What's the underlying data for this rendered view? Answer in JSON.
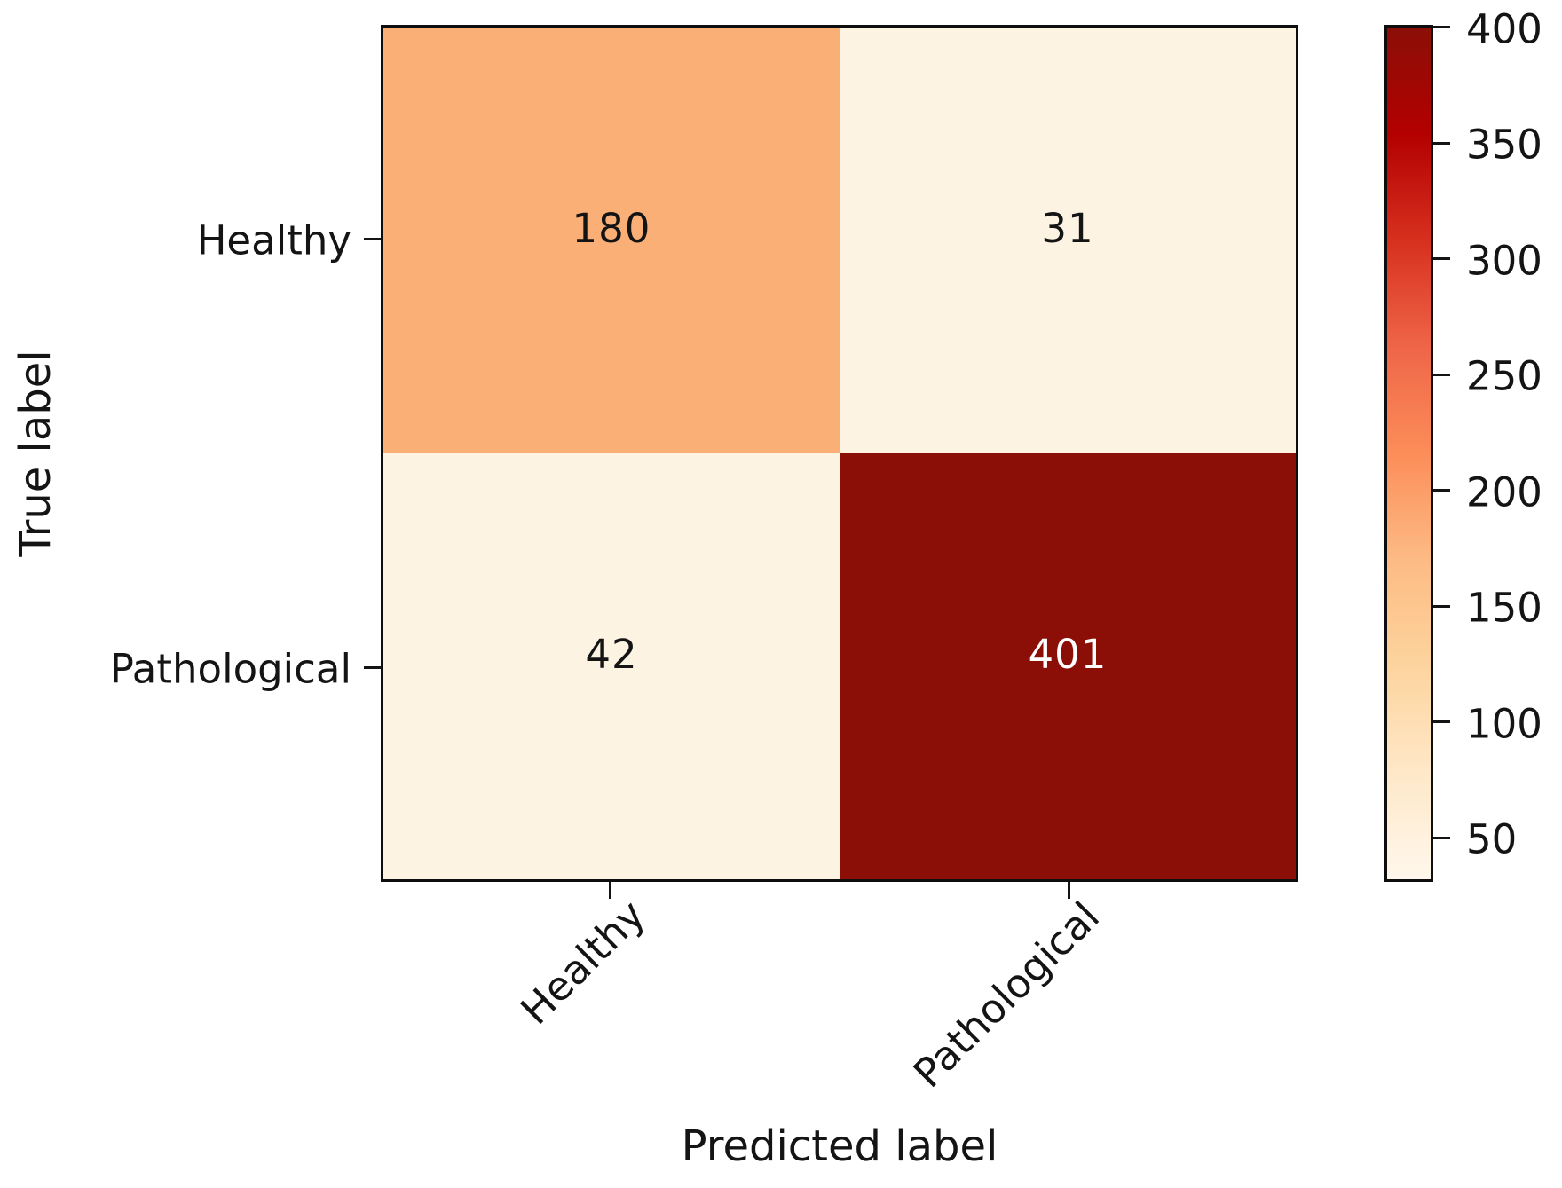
{
  "chart_data": {
    "type": "heatmap",
    "subtype": "confusion-matrix",
    "xlabel": "Predicted label",
    "ylabel": "True label",
    "x_categories": [
      "Healthy",
      "Pathological"
    ],
    "y_categories": [
      "Healthy",
      "Pathological"
    ],
    "matrix": [
      [
        180,
        31
      ],
      [
        42,
        401
      ]
    ],
    "vmin": 31,
    "vmax": 401,
    "colorbar_ticks": [
      400,
      350,
      300,
      250,
      200,
      150,
      100,
      50
    ],
    "colormap": "OrRd",
    "colormap_stops": [
      {
        "color": "#fff7ec",
        "pos": 0
      },
      {
        "color": "#fee8c8",
        "pos": 12.5
      },
      {
        "color": "#fdd49e",
        "pos": 25
      },
      {
        "color": "#fdbb84",
        "pos": 37.5
      },
      {
        "color": "#fc8d59",
        "pos": 50
      },
      {
        "color": "#ef6548",
        "pos": 62.5
      },
      {
        "color": "#d7301f",
        "pos": 75
      },
      {
        "color": "#b30000",
        "pos": 87.5
      },
      {
        "color": "#8b0f07",
        "pos": 100
      }
    ],
    "cell_colors": [
      [
        "#faaf76",
        "#fcf3e3"
      ],
      [
        "#fcf3e3",
        "#8b0f07"
      ]
    ],
    "cell_text_colors": [
      [
        "#141414",
        "#141414"
      ],
      [
        "#141414",
        "#ffffff"
      ]
    ],
    "axis_color": "#141414",
    "grid": false,
    "legend_position": "right-colorbar"
  }
}
